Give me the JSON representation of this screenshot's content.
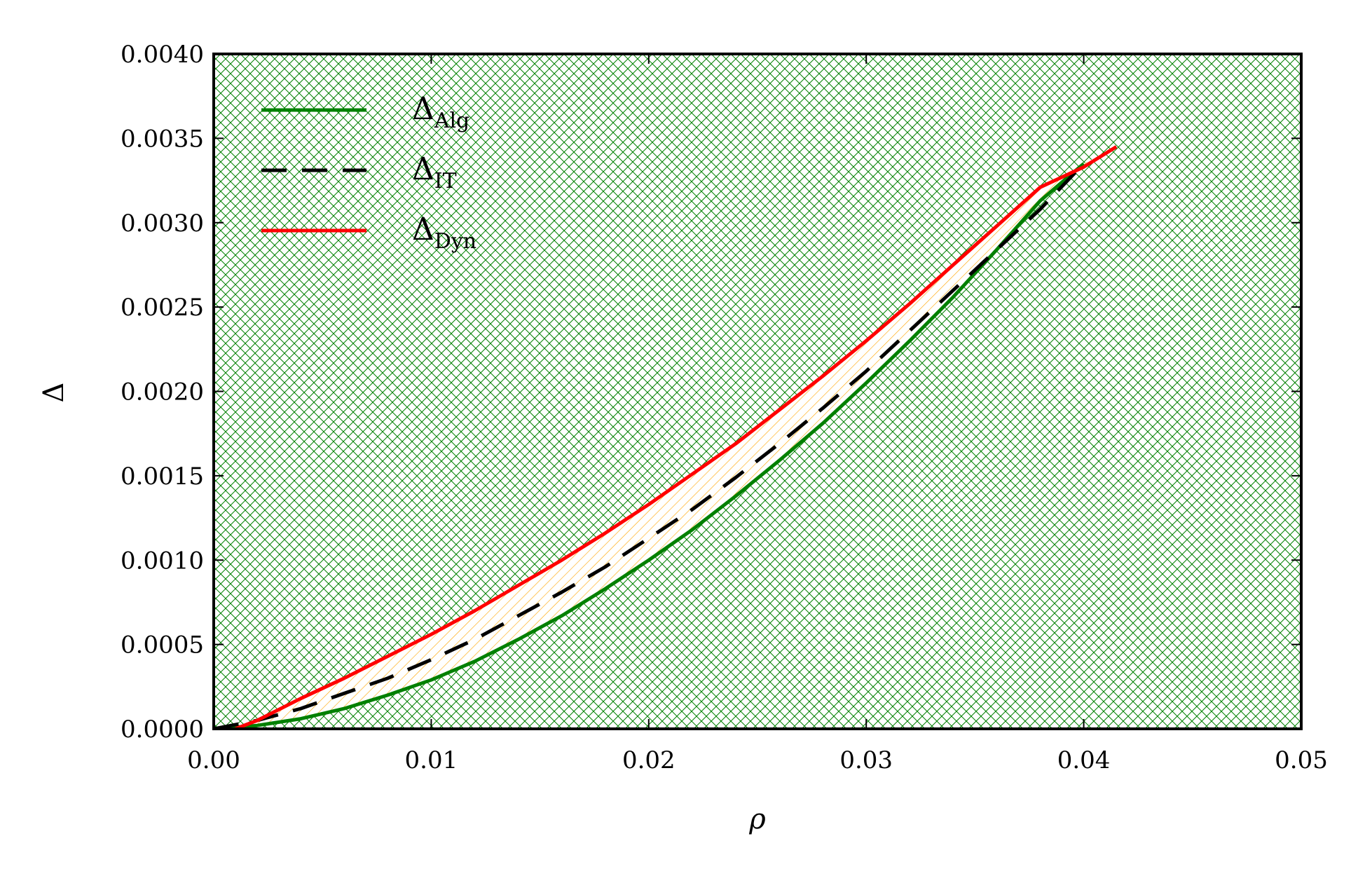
{
  "chart_data": {
    "type": "line",
    "title": "",
    "xlabel": "ρ",
    "ylabel": "Δ",
    "xlim": [
      0.0,
      0.05
    ],
    "ylim": [
      0.0,
      0.004
    ],
    "x_ticks": [
      "0.00",
      "0.01",
      "0.02",
      "0.03",
      "0.04",
      "0.05"
    ],
    "y_ticks": [
      "0.0000",
      "0.0005",
      "0.0010",
      "0.0015",
      "0.0020",
      "0.0025",
      "0.0030",
      "0.0035",
      "0.0040"
    ],
    "grid": false,
    "legend": {
      "placement": "top-left"
    },
    "background_fill": {
      "pattern": "crosshatch",
      "color": "#008000"
    },
    "between_fill": {
      "pattern": "diagonal-hatch",
      "color": "#ffa500",
      "between": [
        "Δ_Alg",
        "Δ_Dyn"
      ]
    },
    "series": [
      {
        "name": "Δ",
        "subscript": "Alg",
        "color": "#008000",
        "style": "solid",
        "x": [
          0.0,
          0.002,
          0.004,
          0.006,
          0.008,
          0.01,
          0.012,
          0.014,
          0.016,
          0.018,
          0.02,
          0.022,
          0.024,
          0.026,
          0.028,
          0.03,
          0.032,
          0.034,
          0.036,
          0.038,
          0.04
        ],
        "y": [
          0.0,
          2e-05,
          6e-05,
          0.00012,
          0.0002,
          0.00029,
          0.0004,
          0.00053,
          0.00067,
          0.00083,
          0.001,
          0.00118,
          0.00138,
          0.00159,
          0.00181,
          0.00205,
          0.0023,
          0.00256,
          0.00284,
          0.00313,
          0.00335
        ]
      },
      {
        "name": "Δ",
        "subscript": "IT",
        "color": "#000000",
        "style": "dashed",
        "x": [
          0.0,
          0.002,
          0.004,
          0.006,
          0.008,
          0.01,
          0.012,
          0.014,
          0.016,
          0.018,
          0.02,
          0.022,
          0.024,
          0.026,
          0.028,
          0.03,
          0.032,
          0.034,
          0.036,
          0.038,
          0.04
        ],
        "y": [
          0.0,
          5e-05,
          0.00012,
          0.00021,
          0.0003,
          0.00041,
          0.00053,
          0.00067,
          0.00081,
          0.00096,
          0.00113,
          0.0013,
          0.00149,
          0.00169,
          0.0019,
          0.00212,
          0.00236,
          0.0026,
          0.00284,
          0.00308,
          0.00335
        ]
      },
      {
        "name": "Δ",
        "subscript": "Dyn",
        "color": "#ff0000",
        "style": "solid",
        "x": [
          0.001,
          0.002,
          0.004,
          0.006,
          0.008,
          0.01,
          0.012,
          0.014,
          0.016,
          0.018,
          0.02,
          0.022,
          0.024,
          0.026,
          0.028,
          0.03,
          0.032,
          0.034,
          0.036,
          0.038,
          0.04,
          0.0415
        ],
        "y": [
          0.0,
          5e-05,
          0.00018,
          0.0003,
          0.00043,
          0.00056,
          0.0007,
          0.00085,
          0.001,
          0.00116,
          0.00133,
          0.00151,
          0.00169,
          0.00189,
          0.00209,
          0.0023,
          0.00252,
          0.00275,
          0.00298,
          0.00321,
          0.00333,
          0.00345
        ]
      }
    ]
  }
}
